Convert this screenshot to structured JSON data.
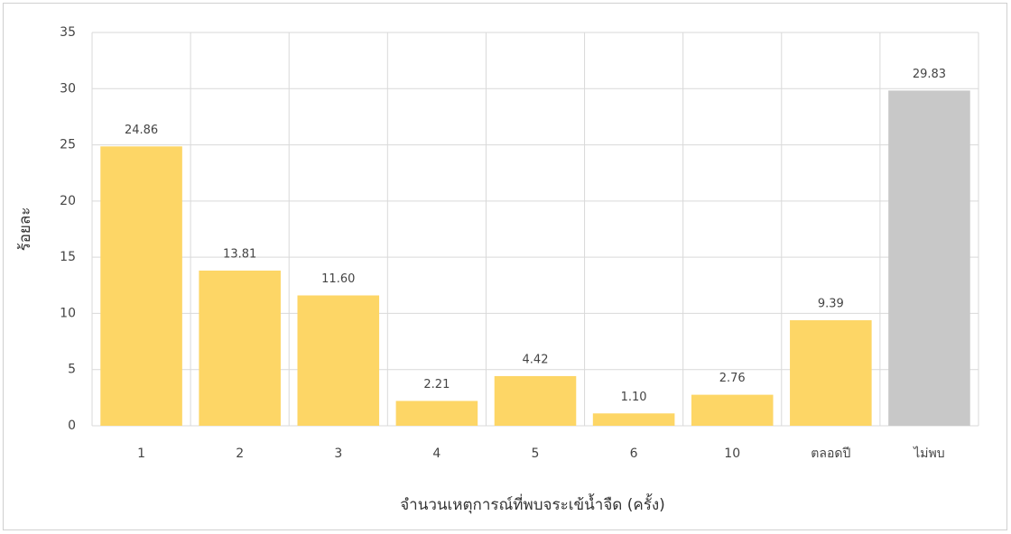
{
  "chart_data": {
    "type": "bar",
    "x_label": "จำนวนเหตุการณ์ที่พบจระเข้น้ำจืด (ครั้ง)",
    "y_label": "ร้อยละ",
    "categories": [
      "1",
      "2",
      "3",
      "4",
      "5",
      "6",
      "10",
      "ตลอดปี",
      "ไม่พบ"
    ],
    "values": [
      24.86,
      13.81,
      11.6,
      2.21,
      4.42,
      1.1,
      2.76,
      9.39,
      29.83
    ],
    "value_labels": [
      "24.86",
      "13.81",
      "11.60",
      "2.21",
      "4.42",
      "1.10",
      "2.76",
      "9.39",
      "29.83"
    ],
    "colors": [
      "#fdd666",
      "#fdd666",
      "#fdd666",
      "#fdd666",
      "#fdd666",
      "#fdd666",
      "#fdd666",
      "#fdd666",
      "#c8c8c8"
    ],
    "ylim": [
      0,
      35
    ],
    "yticks": [
      0,
      5,
      10,
      15,
      20,
      25,
      30,
      35
    ],
    "grid": true
  }
}
